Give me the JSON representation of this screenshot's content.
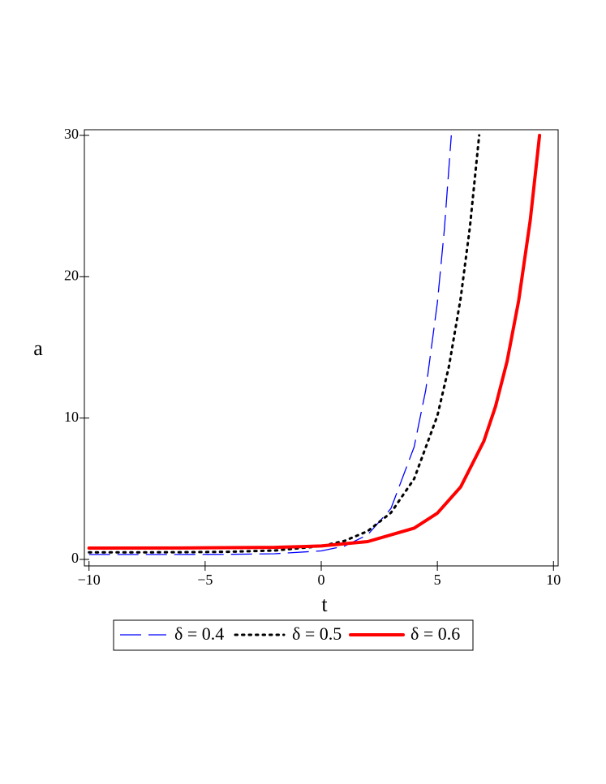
{
  "chart_data": {
    "type": "line",
    "x_label": "t",
    "y_label": "a",
    "xlim": [
      -10.2,
      10.2
    ],
    "ylim": [
      -0.46,
      30.4
    ],
    "xticks": [
      {
        "value": -10,
        "label": "−10"
      },
      {
        "value": -5,
        "label": "−5"
      },
      0,
      5,
      10
    ],
    "yticks": [
      0,
      10,
      20,
      30
    ],
    "legend": "bottom",
    "series": [
      {
        "name": "δ = 0.4",
        "color": "#0000ff",
        "linestyle": "dash",
        "linewidth": 1.3,
        "x": [
          -10,
          -8,
          -6,
          -4,
          -2,
          0,
          1,
          2,
          3,
          4,
          4.5,
          5,
          5.3,
          5.6
        ],
        "values": [
          0.35,
          0.35,
          0.35,
          0.36,
          0.4,
          0.6,
          0.94,
          1.74,
          3.6,
          7.96,
          11.99,
          18.16,
          23.33,
          30
        ]
      },
      {
        "name": "δ = 0.5",
        "color": "#000000",
        "linestyle": "dot",
        "linewidth": 3,
        "x": [
          -10,
          -8,
          -6,
          -4,
          -2,
          0,
          1,
          2,
          3,
          4,
          5,
          5.5,
          6,
          6.4,
          6.8
        ],
        "values": [
          0.5,
          0.5,
          0.51,
          0.54,
          0.63,
          0.94,
          1.31,
          2.0,
          3.3,
          5.7,
          10.16,
          13.67,
          18.45,
          23.5,
          30
        ]
      },
      {
        "name": "δ = 0.6",
        "color": "#ff0000",
        "linestyle": "solid",
        "linewidth": 4,
        "x": [
          -10,
          -6,
          -2,
          0,
          2,
          4,
          5,
          6,
          7,
          7.5,
          8,
          8.5,
          9,
          9.4
        ],
        "values": [
          0.8,
          0.81,
          0.85,
          0.95,
          1.26,
          2.21,
          3.27,
          5.12,
          8.36,
          10.8,
          14.0,
          18.3,
          24.0,
          30
        ]
      }
    ]
  }
}
